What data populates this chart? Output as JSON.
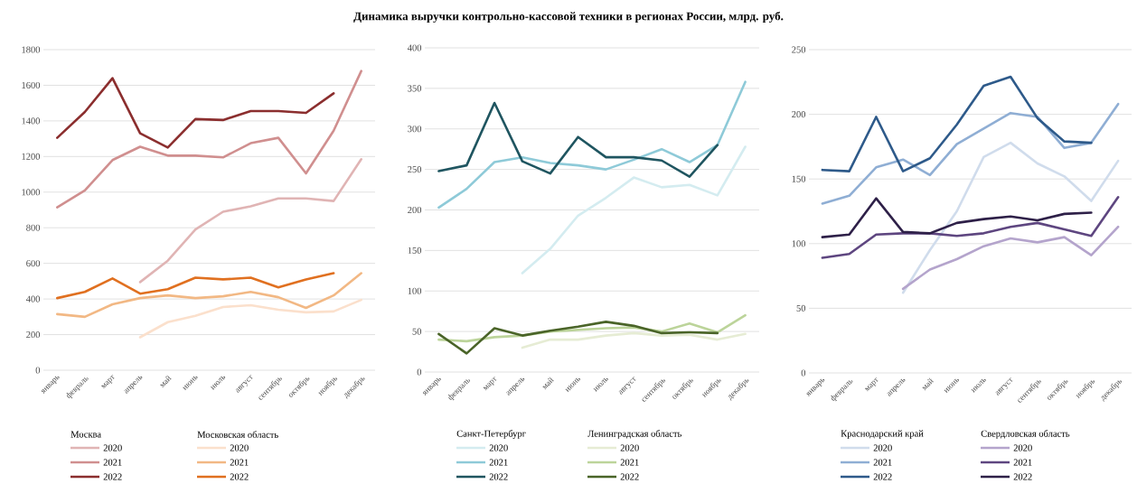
{
  "chart_data": [
    {
      "type": "line",
      "categories": [
        "январь",
        "февраль",
        "март",
        "апрель",
        "май",
        "июнь",
        "июль",
        "август",
        "сентябрь",
        "октябрь",
        "ноябрь",
        "декабрь"
      ],
      "ylim": [
        0,
        1800
      ],
      "yticks": [
        0,
        200,
        400,
        600,
        800,
        1000,
        1200,
        1400,
        1600,
        1800
      ],
      "grid": "y",
      "legend": "bottom",
      "line_style": "solid",
      "marker": "none",
      "annotations": [
        "Москва",
        "Московская область"
      ],
      "series": [
        {
          "name": "2020",
          "color": "#e0b4b4",
          "values": [
            null,
            null,
            null,
            495,
            615,
            790,
            890,
            920,
            965,
            965,
            950,
            1185
          ]
        },
        {
          "name": "2021",
          "color": "#d08f8f",
          "values": [
            915,
            1010,
            1180,
            1255,
            1205,
            1205,
            1195,
            1275,
            1305,
            1105,
            1345,
            1680
          ]
        },
        {
          "name": "2022",
          "color": "#8b2e2e",
          "values": [
            1305,
            1450,
            1640,
            1330,
            1250,
            1410,
            1405,
            1455,
            1455,
            1445,
            1555,
            null
          ]
        },
        {
          "name": "2020",
          "color": "#fbe0cc",
          "values": [
            null,
            null,
            null,
            185,
            270,
            305,
            355,
            365,
            340,
            325,
            330,
            395
          ]
        },
        {
          "name": "2021",
          "color": "#f2b884",
          "values": [
            315,
            300,
            370,
            405,
            420,
            405,
            415,
            440,
            410,
            350,
            420,
            545
          ]
        },
        {
          "name": "2022",
          "color": "#e07020",
          "values": [
            405,
            440,
            515,
            430,
            455,
            520,
            510,
            520,
            465,
            510,
            545,
            null
          ]
        }
      ]
    },
    {
      "type": "line",
      "title": "Динамика выручки контрольно-кассовой техники в регионах России, млрд. руб.",
      "categories": [
        "январь",
        "февраль",
        "март",
        "апрель",
        "май",
        "июнь",
        "июль",
        "август",
        "сентябрь",
        "октябрь",
        "ноябрь",
        "декабрь"
      ],
      "ylim": [
        0,
        400
      ],
      "yticks": [
        0,
        50,
        100,
        150,
        200,
        250,
        300,
        350,
        400
      ],
      "grid": "y",
      "legend": "bottom",
      "line_style": "solid",
      "marker": "none",
      "annotations": [
        "Санкт-Петербург",
        "Ленинградская область"
      ],
      "series": [
        {
          "name": "2020",
          "color": "#d4ecf0",
          "values": [
            null,
            null,
            null,
            122,
            152,
            193,
            215,
            240,
            228,
            231,
            218,
            278
          ]
        },
        {
          "name": "2021",
          "color": "#8ecad8",
          "values": [
            203,
            226,
            259,
            265,
            258,
            255,
            250,
            262,
            275,
            259,
            280,
            358
          ]
        },
        {
          "name": "2022",
          "color": "#1f5560",
          "values": [
            248,
            255,
            332,
            260,
            245,
            290,
            265,
            265,
            261,
            241,
            280,
            null
          ]
        },
        {
          "name": "2020",
          "color": "#e6ecd4",
          "values": [
            null,
            null,
            null,
            30,
            40,
            40,
            45,
            48,
            45,
            46,
            40,
            47
          ]
        },
        {
          "name": "2021",
          "color": "#bcd49a",
          "values": [
            40,
            38,
            43,
            45,
            50,
            52,
            54,
            55,
            50,
            60,
            49,
            70
          ]
        },
        {
          "name": "2022",
          "color": "#4a6428",
          "values": [
            47,
            23,
            54,
            45,
            51,
            56,
            62,
            57,
            48,
            49,
            48,
            null
          ]
        }
      ]
    },
    {
      "type": "line",
      "categories": [
        "январь",
        "февраль",
        "март",
        "апрель",
        "май",
        "июнь",
        "июль",
        "август",
        "сентябрь",
        "октябрь",
        "ноябрь",
        "декабрь"
      ],
      "ylim": [
        0,
        250
      ],
      "yticks": [
        0,
        50,
        100,
        150,
        200,
        250
      ],
      "grid": "y",
      "legend": "bottom",
      "line_style": "solid",
      "marker": "none",
      "annotations": [
        "Краснодарский край",
        "Свердловская область"
      ],
      "series": [
        {
          "name": "2020",
          "color": "#d0dcec",
          "values": [
            null,
            null,
            null,
            62,
            95,
            125,
            167,
            178,
            162,
            152,
            133,
            164
          ]
        },
        {
          "name": "2021",
          "color": "#8faed4",
          "values": [
            131,
            137,
            159,
            165,
            153,
            177,
            189,
            201,
            198,
            174,
            178,
            208
          ]
        },
        {
          "name": "2022",
          "color": "#2e5a8a",
          "values": [
            157,
            156,
            198,
            156,
            166,
            192,
            222,
            229,
            197,
            179,
            178,
            null
          ]
        },
        {
          "name": "2020",
          "color": "#b4a4cc",
          "values": [
            null,
            null,
            null,
            65,
            80,
            88,
            98,
            104,
            101,
            105,
            91,
            113
          ]
        },
        {
          "name": "2021",
          "color": "#5e4680",
          "values": [
            89,
            92,
            107,
            108,
            108,
            106,
            108,
            113,
            116,
            111,
            106,
            136
          ]
        },
        {
          "name": "2022",
          "color": "#2e2048",
          "values": [
            105,
            107,
            135,
            109,
            108,
            116,
            119,
            121,
            118,
            123,
            124,
            null
          ]
        }
      ]
    }
  ]
}
